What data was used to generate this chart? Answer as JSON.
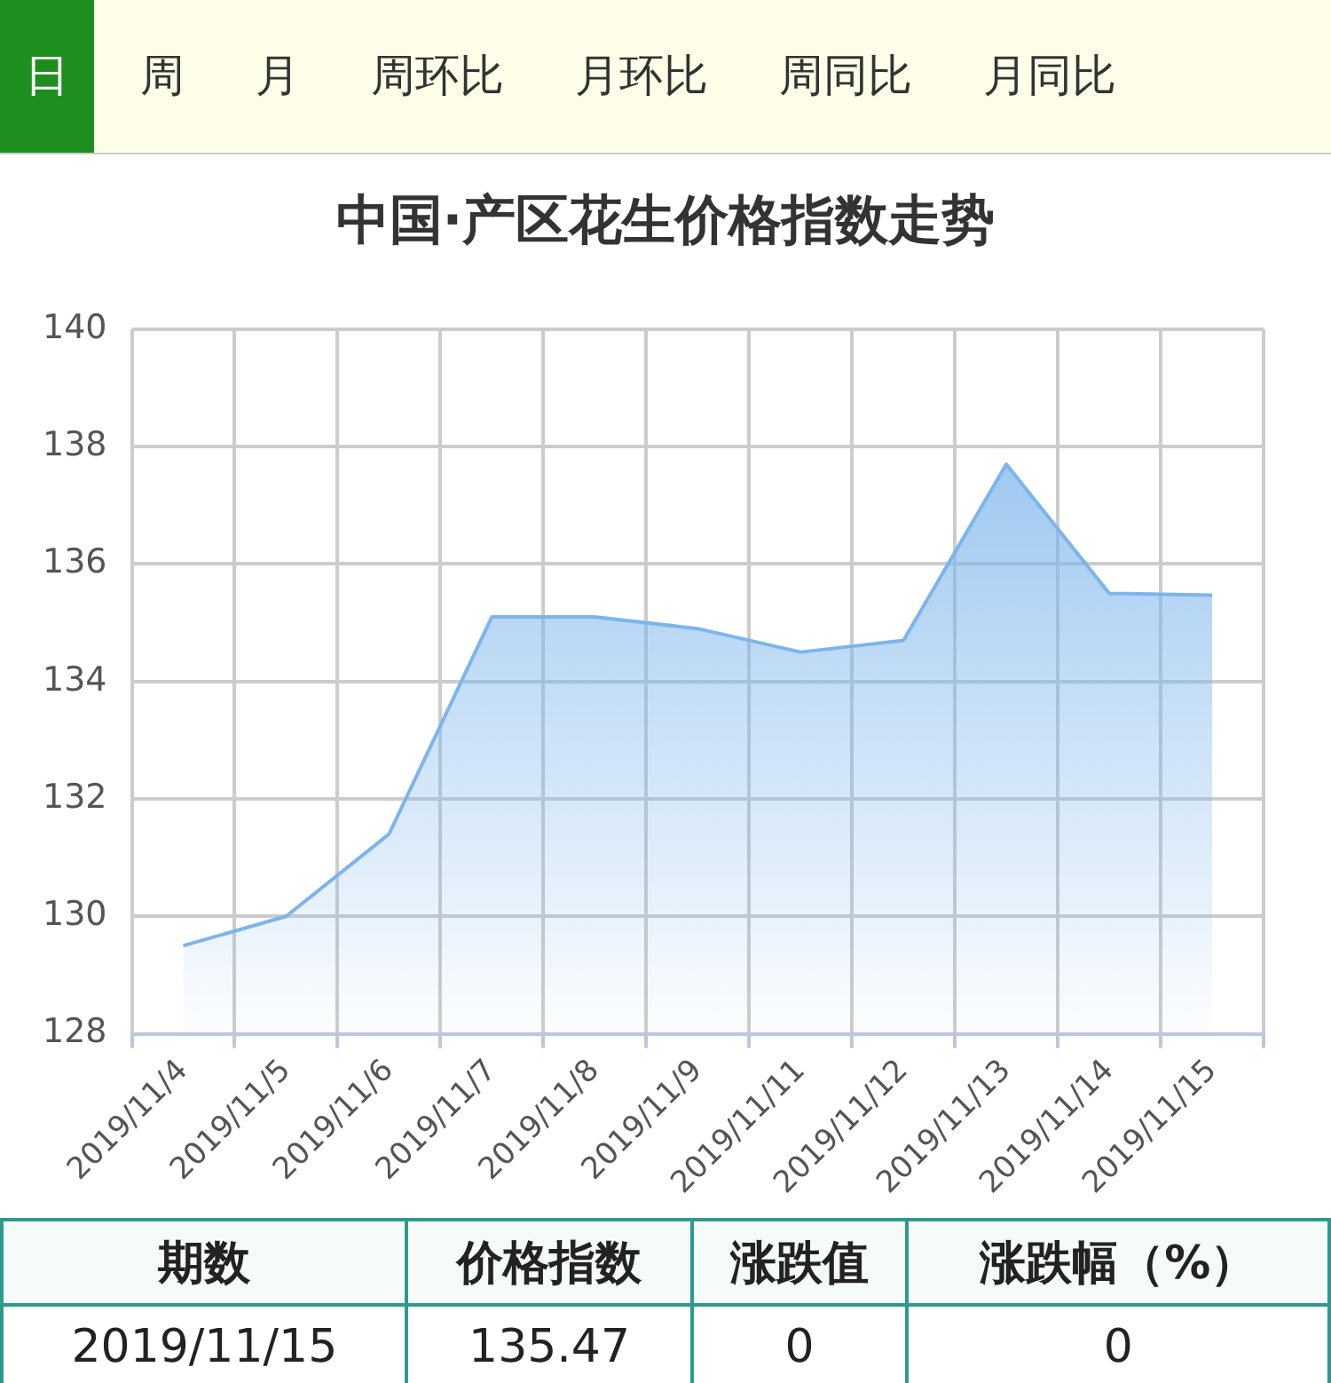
{
  "chart_data": {
    "type": "area",
    "title": "中国·产区花生价格指数走势",
    "categories": [
      "2019/11/4",
      "2019/11/5",
      "2019/11/6",
      "2019/11/7",
      "2019/11/8",
      "2019/11/9",
      "2019/11/11",
      "2019/11/12",
      "2019/11/13",
      "2019/11/14",
      "2019/11/15"
    ],
    "series": [
      {
        "color": "#7cb5ec",
        "values": [
          129.5,
          130.0,
          131.4,
          135.1,
          135.1,
          134.9,
          134.5,
          134.7,
          137.7,
          135.5,
          135.47
        ]
      }
    ],
    "ylim": [
      128,
      140
    ],
    "yticks": [
      128,
      130,
      132,
      134,
      136,
      138,
      140
    ],
    "grid": true,
    "legend": false,
    "marker": "none",
    "line_style": "solid",
    "annotations": [
      "日",
      "周",
      "月",
      "周环比",
      "月环比",
      "周同比",
      "月同比",
      "期数",
      "价格指数",
      "涨跌值",
      "涨跌幅（%）",
      "2019/11/15",
      "135.47",
      "0",
      "0"
    ]
  }
}
